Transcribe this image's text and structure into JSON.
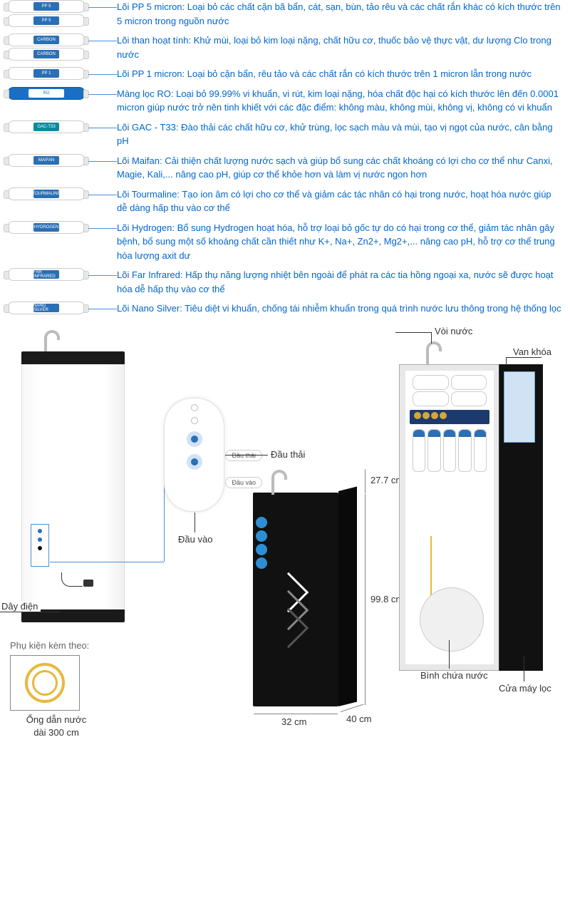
{
  "accent_color": "#0066cc",
  "leader_color": "#4a90d9",
  "filters": [
    {
      "count": 2,
      "labelColor": "#2b6fb5",
      "tag": "PP 5",
      "title": "Lõi PP 5 micron:",
      "desc": "Loại bỏ các chất cặn bã bẩn, cát, sạn, bùn, tảo rêu và các chất rắn khác có kích thước trên 5 micron trong nguồn nước"
    },
    {
      "count": 2,
      "labelColor": "#2b6fb5",
      "tag": "CARBON",
      "title": "Lõi than hoạt tính:",
      "desc": "Khử mùi, loại bỏ kim loại nặng, chất hữu cơ, thuốc bảo vệ thực vật, dư lượng Clo trong nước"
    },
    {
      "count": 1,
      "labelColor": "#2b6fb5",
      "tag": "PP 1",
      "title": "Lõi PP 1 micron:",
      "desc": "Loại bỏ cặn bẩn, rêu tảo và các chất rắn có kích thước trên 1 micron lẫn trong nước"
    },
    {
      "count": 1,
      "ro": true,
      "labelColor": "#ffffff",
      "tag": "RO",
      "title": "Màng lọc RO:",
      "desc": "Loại bỏ 99.99% vi khuẩn, vi rút, kim loại nặng, hóa chất độc hại có kích thước lên đến 0.0001 micron giúp nước trở nên tinh khiết với các đặc điểm: không màu, không mùi, không vị, không có vi khuẩn"
    },
    {
      "count": 1,
      "labelColor": "#0b8a9e",
      "tag": "GAC-T33",
      "title": "Lõi GAC - T33:",
      "desc": "Đào thải các chất hữu cơ, khử trùng, lọc sạch màu và mùi, tạo vị ngọt của nước, cân bằng pH"
    },
    {
      "count": 1,
      "labelColor": "#2b6fb5",
      "tag": "MAIFAN",
      "title": "Lõi Maifan:",
      "desc": "Cải thiện chất lượng nước sạch và giúp bổ sung các chất khoáng có lợi cho cơ thể như Canxi, Magie, Kali,... nâng cao pH, giúp cơ thể khỏe hơn và làm vị nước ngon hơn"
    },
    {
      "count": 1,
      "labelColor": "#2b6fb5",
      "tag": "TOURMALINE",
      "title": "Lõi Tourmaline:",
      "desc": "Tạo ion âm có lợi cho cơ thể và giảm các tác nhân có hại trong nước, hoạt hóa nước giúp dễ dàng hấp thu vào cơ thể"
    },
    {
      "count": 1,
      "labelColor": "#2b6fb5",
      "tag": "HYDROGEN",
      "title": "Lõi Hydrogen:",
      "desc": "Bổ sung Hydrogen hoạt hóa, hỗ trợ loại bỏ gốc tự do có hại trong cơ thể, giảm tác nhân gây bệnh, bổ sung một số khoáng chất cần thiết như K+, Na+, Zn2+, Mg2+,... nâng cao pH, hỗ trợ cơ thể trung hòa lượng axit dư"
    },
    {
      "count": 1,
      "labelColor": "#2b6fb5",
      "tag": "FAR INFRARED",
      "title": "Lõi Far Infrared:",
      "desc": "Hấp thụ năng lượng nhiệt bên ngoài để phát ra các tia hồng ngoại xa, nước sẽ được hoạt hóa dễ hấp thụ vào cơ thể"
    },
    {
      "count": 1,
      "labelColor": "#2b6fb5",
      "tag": "NANO SILVER",
      "title": "Lõi Nano Silver:",
      "desc": "Tiêu diệt vi khuẩn, chống tái nhiễm khuẩn trong quá trình nước lưu thông trong hệ thống lọc"
    }
  ],
  "callouts": {
    "faucet": "Vòi nước",
    "valve": "Van khóa",
    "waste": "Đầu thải",
    "inlet": "Đầu vào",
    "cord": "Dây điện",
    "tank": "Bình chứa nước",
    "door": "Cửa máy lọc",
    "waste_pill": "Đầu thải",
    "inlet_pill": "Đầu vào"
  },
  "dims": {
    "faucet_h": "27.7 cm",
    "body_h": "99.8 cm",
    "width": "32 cm",
    "depth": "40 cm"
  },
  "accessory": {
    "heading": "Phụ kiện kèm theo:",
    "caption_l1": "Ống dẫn nước",
    "caption_l2": "dài 300 cm"
  }
}
